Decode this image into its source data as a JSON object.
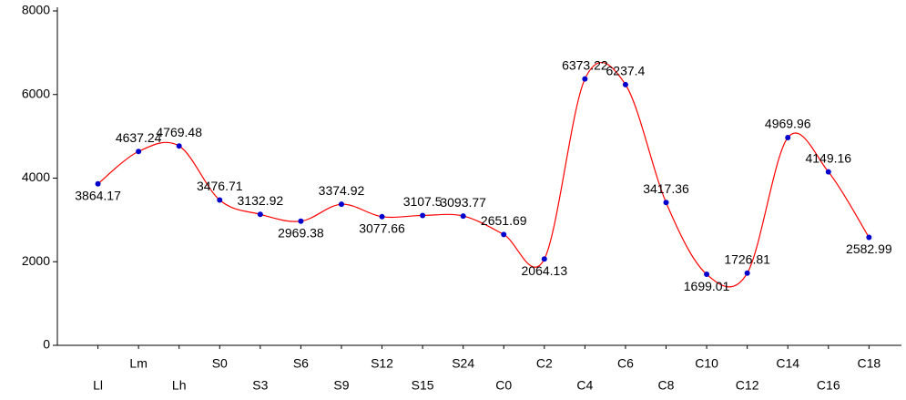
{
  "chart_data": {
    "type": "line",
    "categories": [
      "Ll",
      "Lm",
      "Lh",
      "S0",
      "S3",
      "S6",
      "S9",
      "S12",
      "S15",
      "S24",
      "C0",
      "C2",
      "C4",
      "C6",
      "C8",
      "C10",
      "C12",
      "C14",
      "C16",
      "C18"
    ],
    "series": [
      {
        "color": "#ff0000",
        "marker_color": "#0000cc",
        "values": [
          3864.17,
          4637.24,
          4769.48,
          3476.71,
          3132.92,
          2969.38,
          3374.92,
          3077.66,
          3107.5,
          3093.77,
          2651.69,
          2064.13,
          6373.22,
          6237.4,
          3417.36,
          1699.01,
          1726.81,
          4969.96,
          4149.16,
          2582.99
        ]
      }
    ],
    "ylim": [
      0,
      8000
    ],
    "yticks": [
      0,
      2000,
      4000,
      6000,
      8000
    ],
    "grid": false,
    "smooth": true
  }
}
